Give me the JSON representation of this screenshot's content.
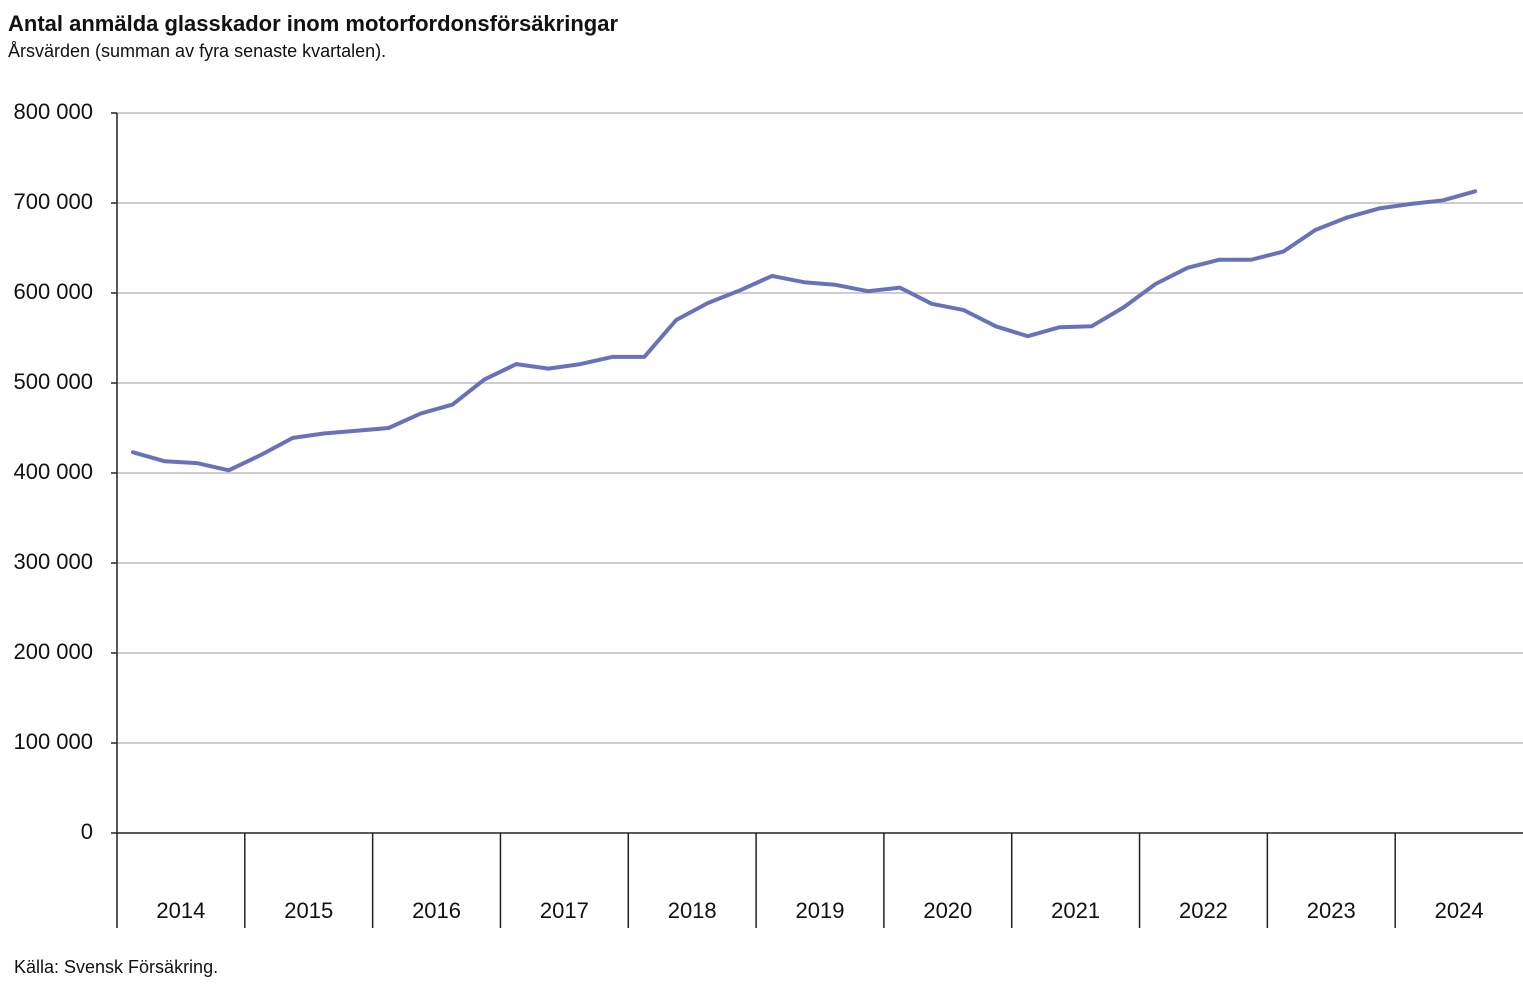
{
  "chart_data": {
    "type": "line",
    "title": "Antal anmälda glasskador inom motorfordonsförsäkringar",
    "subtitle": "Årsvärden (summan av fyra senaste kvartalen).",
    "source": "Källa: Svensk Försäkring.",
    "years": [
      "2014",
      "2015",
      "2016",
      "2017",
      "2018",
      "2019",
      "2020",
      "2021",
      "2022",
      "2023",
      "2024"
    ],
    "series": [
      {
        "color": "#6673b8",
        "values": [
          423000,
          413000,
          411000,
          403000,
          420000,
          439000,
          444000,
          447000,
          450000,
          466000,
          476000,
          504000,
          521000,
          516000,
          521000,
          529000,
          529000,
          570000,
          589000,
          603000,
          619000,
          612000,
          609000,
          602000,
          606000,
          588000,
          581000,
          563000,
          552000,
          562000,
          563000,
          584000,
          610000,
          628000,
          637000,
          637000,
          646000,
          670000,
          684000,
          694000,
          699000,
          703000,
          713000
        ]
      }
    ],
    "ylim": [
      0,
      800000
    ],
    "yticks": [
      0,
      {
        "value": 100000,
        "label": "100 000"
      },
      {
        "value": 200000,
        "label": "200 000"
      },
      {
        "value": 300000,
        "label": "300 000"
      },
      {
        "value": 400000,
        "label": "400 000"
      },
      {
        "value": 500000,
        "label": "500 000"
      },
      {
        "value": 600000,
        "label": "600 000"
      },
      {
        "value": 700000,
        "label": "700 000"
      },
      {
        "value": 800000,
        "label": "800 000"
      }
    ],
    "grid": true
  }
}
